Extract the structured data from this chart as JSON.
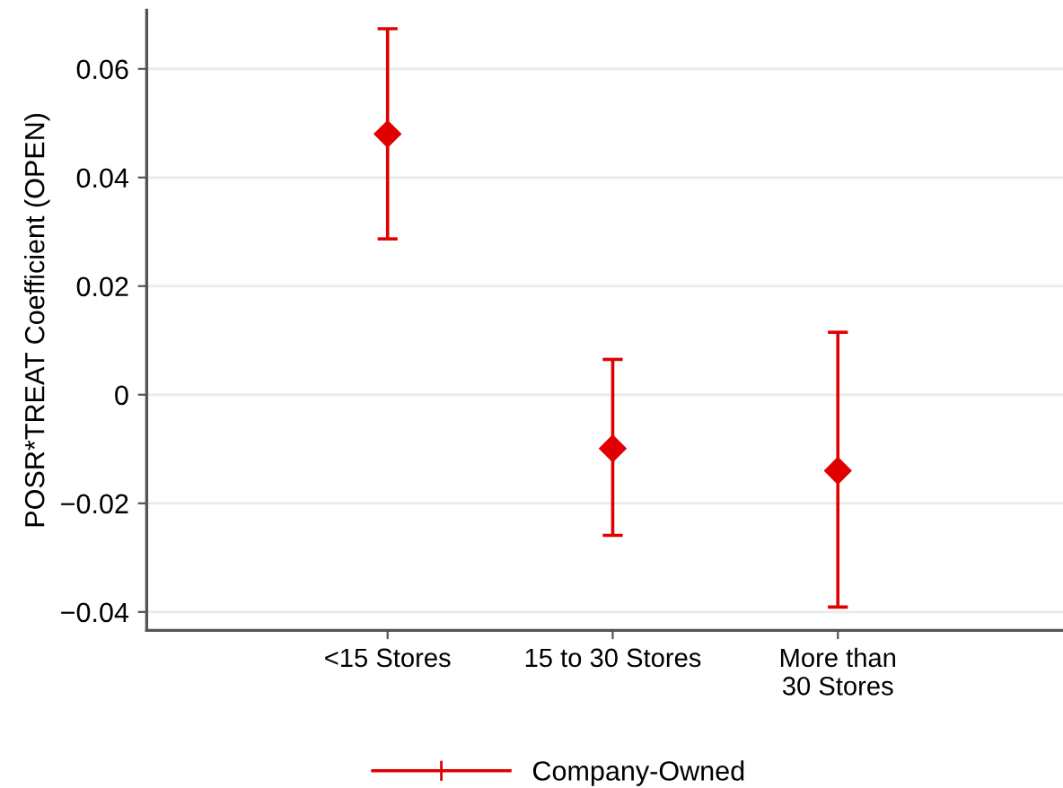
{
  "chart_data": {
    "type": "scatter",
    "ylabel": "POSR*TREAT Coefficient (OPEN)",
    "categories": [
      "<15 Stores",
      "15 to 30 Stores",
      "More than\n30 Stores"
    ],
    "series": [
      {
        "name": "Company-Owned",
        "color": "#e00000",
        "values": [
          0.048,
          -0.0099,
          -0.014
        ],
        "errors": [
          [
            0.0287,
            0.0674
          ],
          [
            -0.0259,
            0.0065
          ],
          [
            -0.0391,
            0.0115
          ]
        ]
      }
    ],
    "marker": "diamond",
    "ylim": [
      -0.0434,
      0.0708
    ],
    "yticks": [
      {
        "value": -0.04,
        "label": "−0.04"
      },
      {
        "value": -0.02,
        "label": "−0.02"
      },
      0,
      0.02,
      0.04,
      0.06
    ],
    "grid": "y",
    "legend": "bottom"
  }
}
